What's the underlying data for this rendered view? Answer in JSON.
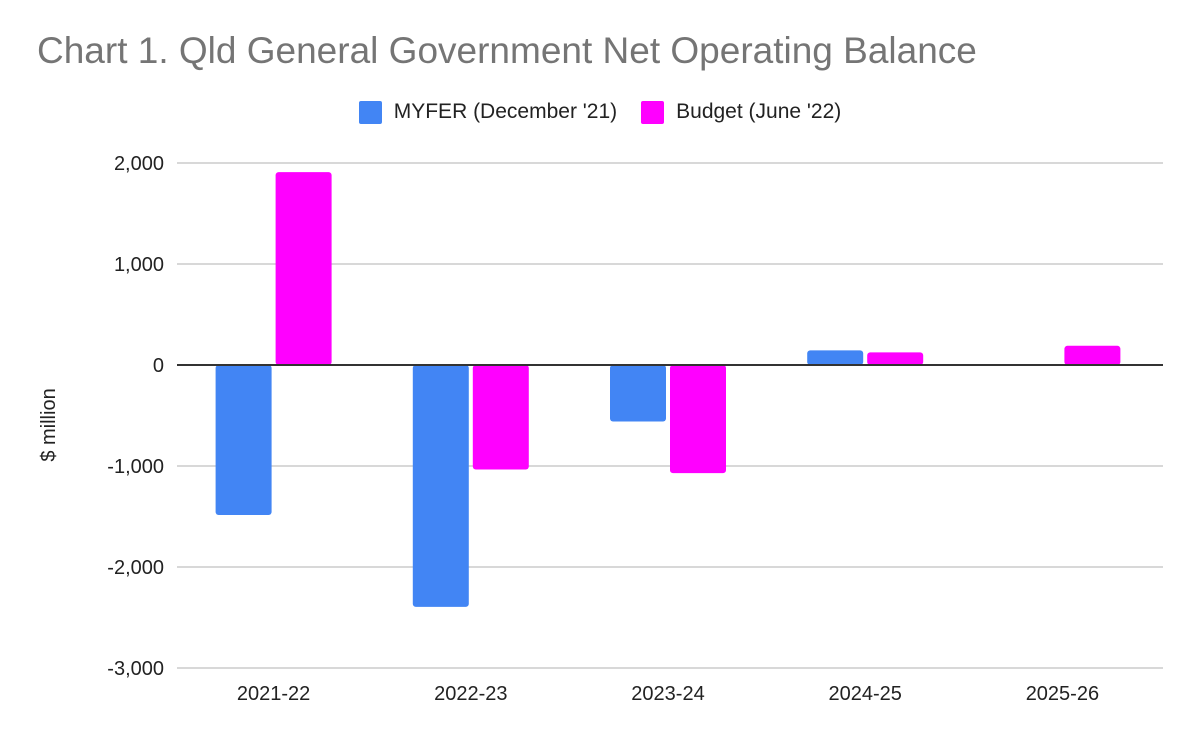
{
  "chart_data": {
    "type": "bar",
    "title": "Chart 1. Qld General Government Net Operating Balance",
    "xlabel": "",
    "ylabel": "$ million",
    "categories": [
      "2021-22",
      "2022-23",
      "2023-24",
      "2024-25",
      "2025-26"
    ],
    "series": [
      {
        "name": "MYFER (December '21)",
        "color": "#4285f4",
        "values": [
          -1485,
          -2395,
          -560,
          145,
          null
        ]
      },
      {
        "name": "Budget (June '22)",
        "color": "#ff00ff",
        "values": [
          1910,
          -1035,
          -1070,
          125,
          190
        ]
      }
    ],
    "ylim": [
      -3000,
      2000
    ],
    "yticks": [
      2000,
      1000,
      0,
      -1000,
      -2000,
      -3000
    ],
    "ytick_labels": [
      "2,000",
      "1,000",
      "0",
      "-1,000",
      "-2,000",
      "-3,000"
    ],
    "grid": true,
    "legend_position": "top-center"
  }
}
